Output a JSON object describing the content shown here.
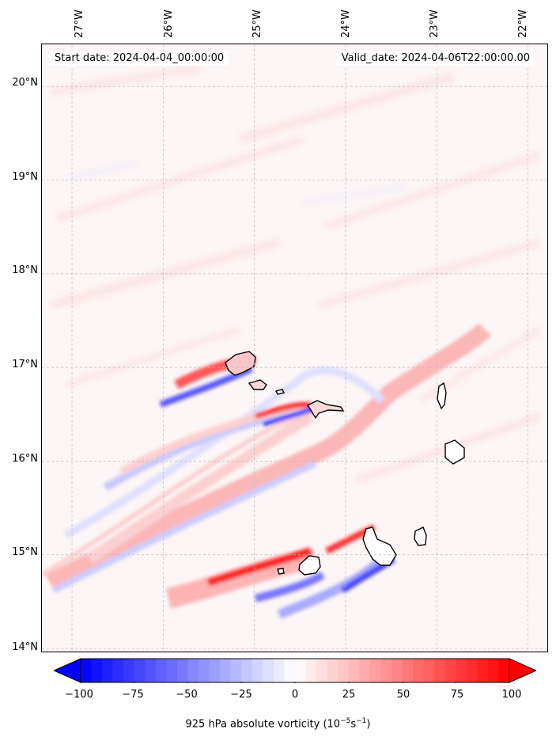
{
  "map": {
    "start_date": "Start date: 2024-04-04_00:00:00",
    "valid_date": "Valid_date: 2024-04-06T22:00:00.00",
    "lon_labels": [
      "27°W",
      "26°W",
      "25°W",
      "24°W",
      "23°W",
      "22°W"
    ],
    "lat_labels": [
      "20°N",
      "19°N",
      "18°N",
      "17°N",
      "16°N",
      "15°N",
      "14°N"
    ],
    "lon_ticks_deg": [
      -27,
      -26,
      -25,
      -24,
      -23,
      -22
    ],
    "lat_ticks_deg": [
      20,
      19,
      18,
      17,
      16,
      15,
      14
    ],
    "extent": {
      "lon_min": -27.33,
      "lon_max": -21.77,
      "lat_min": 13.95,
      "lat_max": 20.45
    }
  },
  "colorbar": {
    "ticks": [
      "−100",
      "−75",
      "−50",
      "−25",
      "0",
      "25",
      "50",
      "75",
      "100"
    ],
    "tick_values": [
      -100,
      -75,
      -50,
      -25,
      0,
      25,
      50,
      75,
      100
    ],
    "min": -100,
    "max": 100,
    "label_text": "925 hPa absolute vorticity (10",
    "label_exp1": "−5",
    "label_mid": "s",
    "label_exp2": "−1",
    "label_end": ")",
    "colors": {
      "negative": "#0000ff",
      "neutral": "#ffffff",
      "positive": "#ff0000"
    }
  }
}
